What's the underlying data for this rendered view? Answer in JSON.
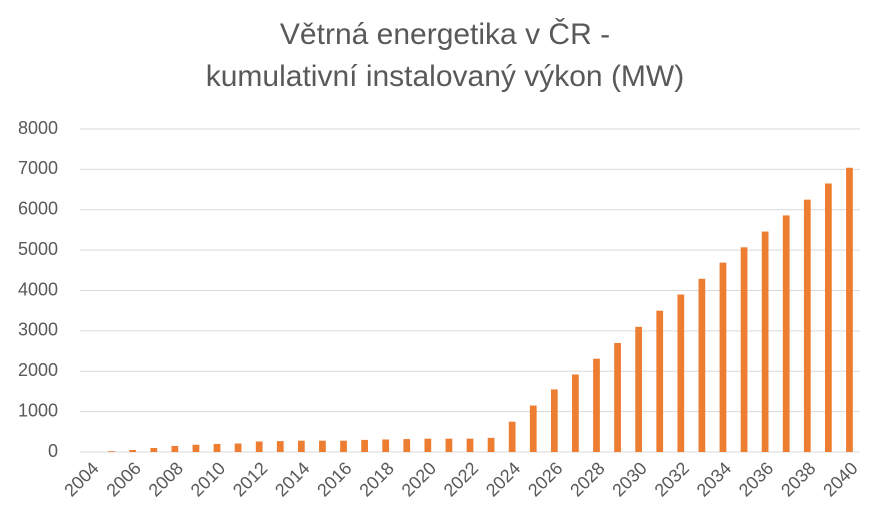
{
  "chart_data": {
    "type": "bar",
    "title": [
      "Větrná energetika v ČR -",
      "kumulativní instalovaný výkon (MW)"
    ],
    "categories": [
      "2004",
      null,
      "2006",
      null,
      "2008",
      null,
      "2010",
      null,
      "2012",
      null,
      "2014",
      null,
      "2016",
      null,
      "2018",
      null,
      "2020",
      null,
      "2022",
      null,
      "2024",
      null,
      "2026",
      null,
      "2028",
      null,
      "2030",
      null,
      "2032",
      null,
      "2034",
      null,
      "2036",
      null,
      "2038",
      null,
      "2040"
    ],
    "values": [
      0,
      20,
      50,
      100,
      150,
      180,
      200,
      210,
      260,
      270,
      280,
      280,
      280,
      300,
      310,
      320,
      330,
      330,
      330,
      350,
      750,
      1150,
      1550,
      1920,
      2310,
      2700,
      3100,
      3500,
      3900,
      4290,
      4690,
      5070,
      5460,
      5860,
      6250,
      6650,
      7040
    ],
    "color": "#ed7d31",
    "ylim": [
      0,
      8000
    ],
    "yticks": [
      0,
      1000,
      2000,
      3000,
      4000,
      5000,
      6000,
      7000,
      8000
    ],
    "grid": true
  }
}
